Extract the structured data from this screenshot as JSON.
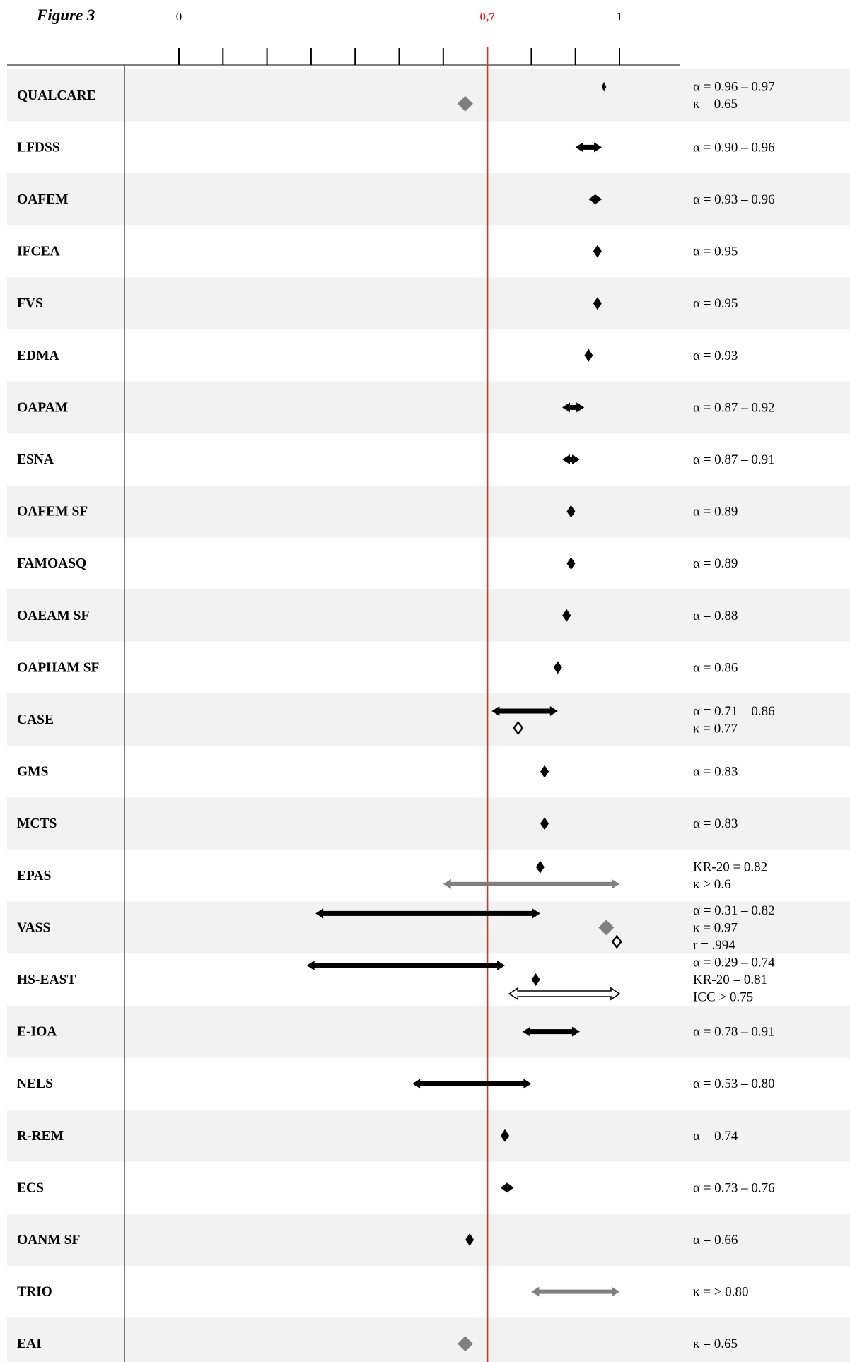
{
  "chart_data": {
    "type": "forest-range",
    "title": "Figure 3",
    "xlim": [
      0,
      1
    ],
    "ticks": [
      {
        "value": 0,
        "label": "0"
      },
      {
        "value": 0.1,
        "label": ""
      },
      {
        "value": 0.2,
        "label": ""
      },
      {
        "value": 0.3,
        "label": ""
      },
      {
        "value": 0.4,
        "label": ""
      },
      {
        "value": 0.5,
        "label": ""
      },
      {
        "value": 0.6,
        "label": ""
      },
      {
        "value": 0.7,
        "label": "0,7",
        "highlight": true
      },
      {
        "value": 0.8,
        "label": ""
      },
      {
        "value": 0.9,
        "label": ""
      },
      {
        "value": 1.0,
        "label": "1"
      }
    ],
    "reference_line": {
      "value": 0.7,
      "color": "#c0392b"
    },
    "colors": {
      "black": "#000000",
      "gray": "#808080",
      "row_shade": "#f2f2f2",
      "ref": "#c0392b"
    },
    "rows": [
      {
        "label": "QUALCARE",
        "stats": [
          "α = 0.96 – 0.97",
          "κ = 0.65"
        ],
        "marks": [
          {
            "kind": "range",
            "from": 0.96,
            "to": 0.97,
            "style": "black"
          },
          {
            "kind": "point",
            "at": 0.65,
            "style": "gray"
          }
        ]
      },
      {
        "label": "LFDSS",
        "stats": [
          "α = 0.90 – 0.96"
        ],
        "marks": [
          {
            "kind": "range",
            "from": 0.9,
            "to": 0.96,
            "style": "black"
          }
        ]
      },
      {
        "label": "OAFEM",
        "stats": [
          "α = 0.93 – 0.96"
        ],
        "marks": [
          {
            "kind": "range",
            "from": 0.93,
            "to": 0.96,
            "style": "black"
          }
        ]
      },
      {
        "label": "IFCEA",
        "stats": [
          "α = 0.95"
        ],
        "marks": [
          {
            "kind": "point",
            "at": 0.95,
            "style": "black"
          }
        ]
      },
      {
        "label": "FVS",
        "stats": [
          "α = 0.95"
        ],
        "marks": [
          {
            "kind": "point",
            "at": 0.95,
            "style": "black"
          }
        ]
      },
      {
        "label": "EDMA",
        "stats": [
          "α = 0.93"
        ],
        "marks": [
          {
            "kind": "point",
            "at": 0.93,
            "style": "black"
          }
        ]
      },
      {
        "label": "OAPAM",
        "stats": [
          "α = 0.87 – 0.92"
        ],
        "marks": [
          {
            "kind": "range",
            "from": 0.87,
            "to": 0.92,
            "style": "black"
          }
        ]
      },
      {
        "label": "ESNA",
        "stats": [
          "α = 0.87 – 0.91"
        ],
        "marks": [
          {
            "kind": "range",
            "from": 0.87,
            "to": 0.91,
            "style": "black"
          }
        ]
      },
      {
        "label": "OAFEM SF",
        "stats": [
          "α = 0.89"
        ],
        "marks": [
          {
            "kind": "point",
            "at": 0.89,
            "style": "black"
          }
        ]
      },
      {
        "label": "FAMOASQ",
        "stats": [
          "α = 0.89"
        ],
        "marks": [
          {
            "kind": "point",
            "at": 0.89,
            "style": "black"
          }
        ]
      },
      {
        "label": "OAEAM SF",
        "stats": [
          "α = 0.88"
        ],
        "marks": [
          {
            "kind": "point",
            "at": 0.88,
            "style": "black"
          }
        ]
      },
      {
        "label": "OAPHAM SF",
        "stats": [
          "α = 0.86"
        ],
        "marks": [
          {
            "kind": "point",
            "at": 0.86,
            "style": "black"
          }
        ]
      },
      {
        "label": "CASE",
        "stats": [
          "α = 0.71 – 0.86",
          "κ = 0.77"
        ],
        "marks": [
          {
            "kind": "range",
            "from": 0.71,
            "to": 0.86,
            "style": "black"
          },
          {
            "kind": "point",
            "at": 0.77,
            "style": "open"
          }
        ]
      },
      {
        "label": "GMS",
        "stats": [
          "α = 0.83"
        ],
        "marks": [
          {
            "kind": "point",
            "at": 0.83,
            "style": "black"
          }
        ]
      },
      {
        "label": "MCTS",
        "stats": [
          "α = 0.83"
        ],
        "marks": [
          {
            "kind": "point",
            "at": 0.83,
            "style": "black"
          }
        ]
      },
      {
        "label": "EPAS",
        "stats": [
          "KR-20 = 0.82",
          "κ > 0.6"
        ],
        "marks": [
          {
            "kind": "point",
            "at": 0.82,
            "style": "black"
          },
          {
            "kind": "range",
            "from": 0.6,
            "to": 1.0,
            "style": "gray"
          }
        ]
      },
      {
        "label": "VASS",
        "stats": [
          "α = 0.31 – 0.82",
          "κ = 0.97",
          "r = .994"
        ],
        "marks": [
          {
            "kind": "range",
            "from": 0.31,
            "to": 0.82,
            "style": "black"
          },
          {
            "kind": "point",
            "at": 0.97,
            "style": "gray"
          },
          {
            "kind": "point",
            "at": 0.994,
            "style": "open"
          }
        ]
      },
      {
        "label": "HS-EAST",
        "stats": [
          "α = 0.29 – 0.74",
          "KR-20 = 0.81",
          "ICC > 0.75"
        ],
        "marks": [
          {
            "kind": "range",
            "from": 0.29,
            "to": 0.74,
            "style": "black"
          },
          {
            "kind": "point",
            "at": 0.81,
            "style": "black"
          },
          {
            "kind": "range",
            "from": 0.75,
            "to": 1.0,
            "style": "open"
          }
        ]
      },
      {
        "label": "E-IOA",
        "stats": [
          "α = 0.78 – 0.91"
        ],
        "marks": [
          {
            "kind": "range",
            "from": 0.78,
            "to": 0.91,
            "style": "black"
          }
        ]
      },
      {
        "label": "NELS",
        "stats": [
          "α = 0.53 – 0.80"
        ],
        "marks": [
          {
            "kind": "range",
            "from": 0.53,
            "to": 0.8,
            "style": "black"
          }
        ]
      },
      {
        "label": "R-REM",
        "stats": [
          "α = 0.74"
        ],
        "marks": [
          {
            "kind": "point",
            "at": 0.74,
            "style": "black"
          }
        ]
      },
      {
        "label": "ECS",
        "stats": [
          "α = 0.73 – 0.76"
        ],
        "marks": [
          {
            "kind": "range",
            "from": 0.73,
            "to": 0.76,
            "style": "black"
          }
        ]
      },
      {
        "label": "OANM SF",
        "stats": [
          "α = 0.66"
        ],
        "marks": [
          {
            "kind": "point",
            "at": 0.66,
            "style": "black"
          }
        ]
      },
      {
        "label": "TRIO",
        "stats": [
          "κ = > 0.80"
        ],
        "marks": [
          {
            "kind": "range",
            "from": 0.8,
            "to": 1.0,
            "style": "gray"
          }
        ]
      },
      {
        "label": "EAI",
        "stats": [
          "κ = 0.65"
        ],
        "marks": [
          {
            "kind": "point",
            "at": 0.65,
            "style": "gray"
          }
        ]
      }
    ]
  }
}
